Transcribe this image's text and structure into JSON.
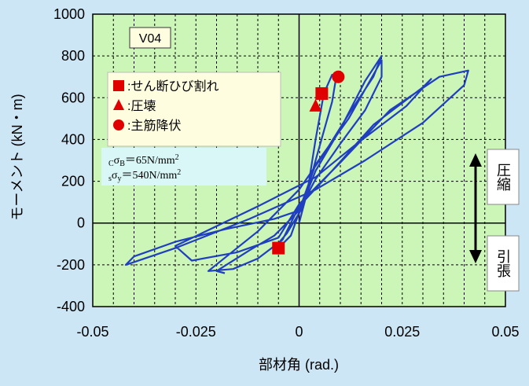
{
  "chart_data": {
    "type": "line",
    "title": "V04",
    "xlabel": "部材角 (rad.)",
    "ylabel": "モーメント (kN・m)",
    "xlim": [
      -0.05,
      0.05
    ],
    "ylim": [
      -400,
      1000
    ],
    "x_ticks": [
      "-0.05",
      "-0.025",
      "0",
      "0.025",
      "0.05"
    ],
    "y_ticks": [
      "-400",
      "-200",
      "0",
      "200",
      "400",
      "600",
      "800",
      "1000"
    ],
    "grid": true,
    "legend": {
      "position": "top-left",
      "items": [
        {
          "marker": "square",
          "label": ":せん断ひび割れ",
          "color": "#e00000"
        },
        {
          "marker": "triangle",
          "label": ":圧壊",
          "color": "#e00000"
        },
        {
          "marker": "circle",
          "label": ":主筋降伏",
          "color": "#e00000"
        }
      ]
    },
    "material_note": {
      "line1": "CσB=65N/mm2",
      "line2": "sσy=540N/mm2"
    },
    "arrow_labels": {
      "top": "圧縮",
      "bottom": "引張"
    },
    "series": [
      {
        "color": "#1f3fbf",
        "x": [
          0,
          0.002,
          0.004,
          0.006,
          0.008,
          0.009,
          0.008,
          0.004,
          0.001,
          -0.003,
          -0.006,
          -0.004,
          -0.002,
          0,
          0.004,
          0.01,
          0.016,
          0.02,
          0.018,
          0.012,
          0.006,
          0.0,
          -0.01,
          -0.022,
          -0.016,
          -0.01,
          -0.004,
          0,
          0.008,
          0.018,
          0.03,
          0.032,
          0.026,
          0.014,
          0.004,
          -0.01,
          -0.03,
          -0.026,
          -0.015,
          -0.005,
          0,
          0.01,
          0.022,
          0.034,
          0.041,
          0.04,
          0.03,
          0.016,
          0.004,
          -0.012,
          -0.03,
          -0.042,
          -0.04,
          -0.03,
          -0.018,
          -0.006,
          0,
          0.004,
          0.012,
          0.02,
          0.02,
          0.016,
          0.01,
          0.004,
          0.0,
          -0.006,
          -0.012,
          -0.02,
          -0.018
        ],
        "y": [
          0,
          150,
          400,
          620,
          710,
          700,
          580,
          300,
          80,
          -50,
          -120,
          -100,
          -60,
          50,
          250,
          450,
          680,
          800,
          700,
          520,
          330,
          160,
          -40,
          -230,
          -220,
          -170,
          -80,
          80,
          250,
          470,
          650,
          690,
          560,
          380,
          220,
          80,
          -110,
          -180,
          -140,
          -70,
          90,
          290,
          540,
          700,
          730,
          660,
          480,
          300,
          160,
          20,
          -120,
          -200,
          -160,
          -90,
          -30,
          20,
          60,
          280,
          500,
          780,
          700,
          540,
          380,
          210,
          60,
          -60,
          -130,
          -230,
          -240
        ]
      }
    ],
    "markers": [
      {
        "type": "square",
        "x": 0.0055,
        "y": 620
      },
      {
        "type": "triangle",
        "x": 0.004,
        "y": 560
      },
      {
        "type": "circle",
        "x": 0.0095,
        "y": 700
      },
      {
        "type": "square",
        "x": -0.005,
        "y": -120
      }
    ]
  }
}
